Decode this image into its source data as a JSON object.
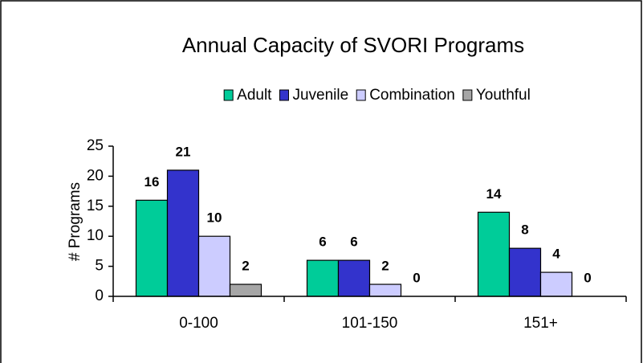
{
  "chart_data": {
    "type": "bar",
    "title": "Annual Capacity of SVORI Programs",
    "y_label": "# Programs",
    "categories": [
      "0-100",
      "101-150",
      "151+"
    ],
    "series": [
      {
        "name": "Adult",
        "color": "#00cc99",
        "values": [
          16,
          6,
          14
        ]
      },
      {
        "name": "Juvenile",
        "color": "#3333cc",
        "values": [
          21,
          6,
          8
        ]
      },
      {
        "name": "Combination",
        "color": "#ccccff",
        "values": [
          10,
          2,
          4
        ]
      },
      {
        "name": "Youthful",
        "color": "#a6a6a6",
        "values": [
          2,
          0,
          0
        ]
      }
    ],
    "ylim": [
      0,
      25
    ],
    "yticks": [
      0,
      5,
      10,
      15,
      20,
      25
    ],
    "legend": "top"
  }
}
